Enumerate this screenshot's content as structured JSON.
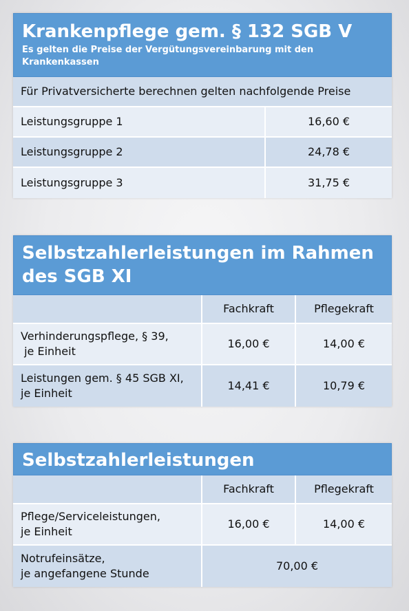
{
  "table1": {
    "title": "Krankenpflege gem. § 132 SGB V",
    "subtitle": "Es gelten die Preise der Vergütungsvereinbarung mit den Krankenkassen",
    "note": "Für Privatversicherte berechnen gelten nachfolgende Preise",
    "rows": [
      {
        "label": "Leistungsgruppe 1",
        "price": "16,60 €"
      },
      {
        "label": "Leistungsgruppe 2",
        "price": "24,78 €"
      },
      {
        "label": "Leistungsgruppe 3",
        "price": "31,75 €"
      }
    ]
  },
  "table2": {
    "title": "Selbstzahlerleistungen im Rahmen des SGB XI",
    "col_fachkraft": "Fachkraft",
    "col_pflegekraft": "Pflegekraft",
    "rows": [
      {
        "label_line1": "Verhinderungspflege, § 39,",
        "label_line2": " je Einheit",
        "fachkraft": "16,00 €",
        "pflegekraft": "14,00 €"
      },
      {
        "label_line1": "Leistungen gem. § 45 SGB XI,",
        "label_line2": "je Einheit",
        "fachkraft": "14,41 €",
        "pflegekraft": "10,79 €"
      }
    ]
  },
  "table3": {
    "title": "Selbstzahlerleistungen",
    "col_fachkraft": "Fachkraft",
    "col_pflegekraft": "Pflegekraft",
    "row1": {
      "label_line1": "Pflege/Serviceleistungen,",
      "label_line2": "je Einheit",
      "fachkraft": "16,00 €",
      "pflegekraft": "14,00 €"
    },
    "row2": {
      "label_line1": "Notrufeinsätze,",
      "label_line2": "je angefangene Stunde",
      "price": "70,00 €"
    }
  }
}
